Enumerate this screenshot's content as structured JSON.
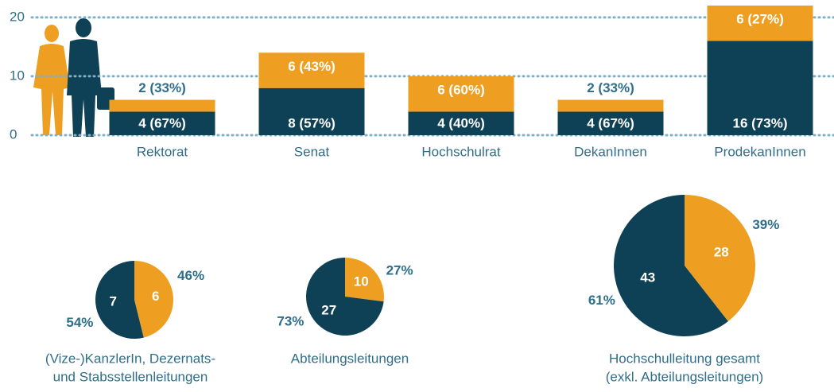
{
  "chart_data": [
    {
      "type": "bar",
      "stacked": true,
      "categories": [
        "Rektorat",
        "Senat",
        "Hochschulrat",
        "DekanInnen",
        "ProdekanInnen"
      ],
      "series": [
        {
          "color": "#0f4156",
          "values": [
            4,
            8,
            4,
            4,
            16
          ],
          "value_labels": [
            "4 (67%)",
            "8 (57%)",
            "4 (40%)",
            "4 (67%)",
            "16 (73%)"
          ]
        },
        {
          "color": "#ee9f22",
          "values": [
            2,
            6,
            6,
            2,
            6
          ],
          "value_labels": [
            "2 (33%)",
            "6 (43%)",
            "6 (60%)",
            "2 (33%)",
            "6 (27%)"
          ]
        }
      ],
      "ylim": [
        0,
        22
      ],
      "yticks": [
        0,
        10,
        20
      ],
      "grid": true
    },
    {
      "type": "pie",
      "title": [
        "(Vize-)KanzlerIn, Dezernats-",
        "und Stabsstellenleitungen"
      ],
      "values": [
        6,
        7
      ],
      "colors": [
        "#ee9f22",
        "#0f4156"
      ],
      "share_labels": [
        "46%",
        "54%"
      ]
    },
    {
      "type": "pie",
      "title": [
        "Abteilungsleitungen"
      ],
      "values": [
        10,
        27
      ],
      "colors": [
        "#ee9f22",
        "#0f4156"
      ],
      "share_labels": [
        "27%",
        "73%"
      ]
    },
    {
      "type": "pie",
      "title": [
        "Hochschulleitung gesamt",
        "(exkl. Abteilungsleitungen)"
      ],
      "values": [
        28,
        43
      ],
      "colors": [
        "#ee9f22",
        "#0f4156"
      ],
      "share_labels": [
        "39%",
        "61%"
      ]
    }
  ]
}
